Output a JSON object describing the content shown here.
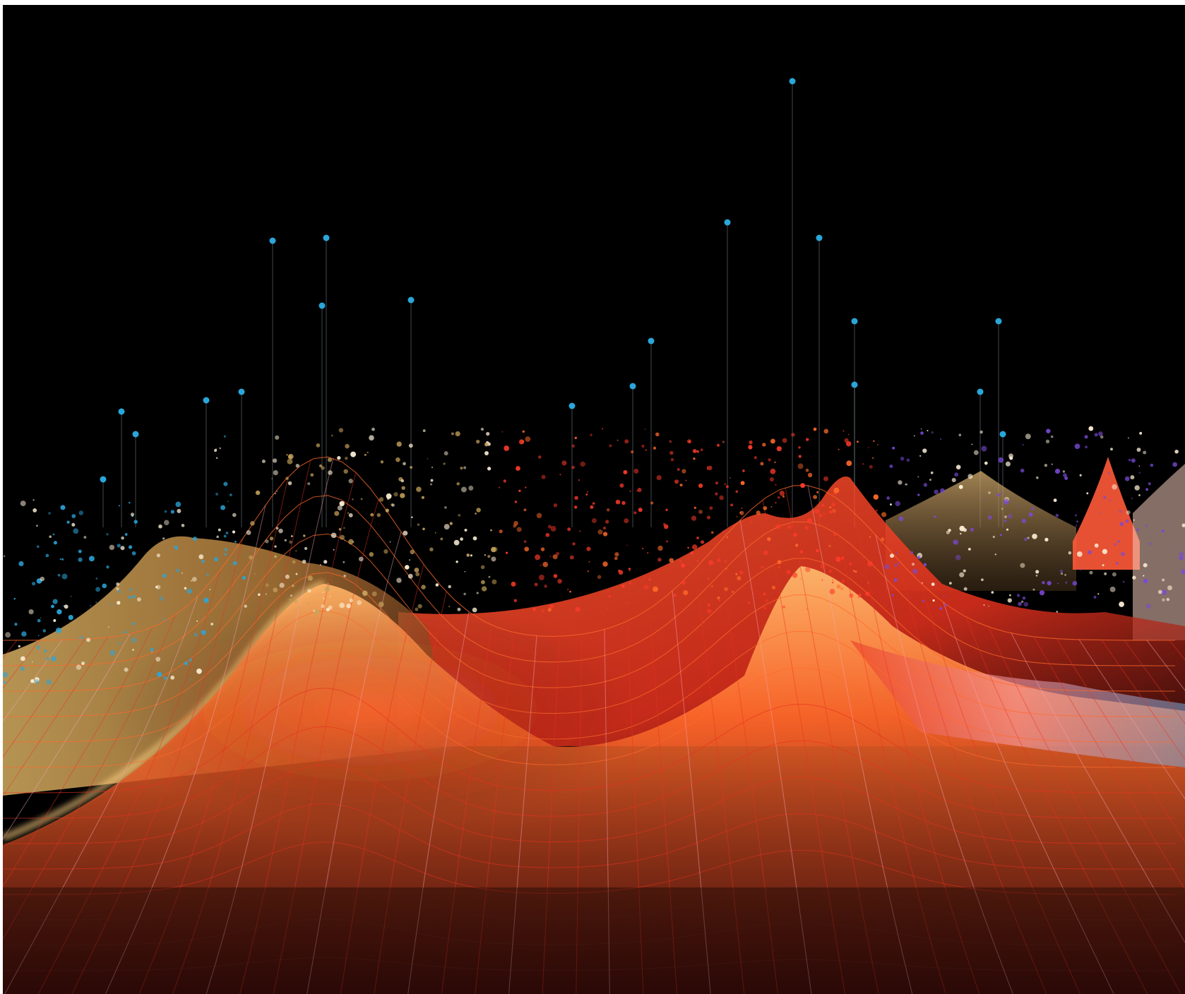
{
  "artwork": {
    "subject": "abstract-data-landscape",
    "background_color": "#000000",
    "palette": {
      "spike_tip": "#2aa6d9",
      "ridge_gold": "#c9a45c",
      "mesh_orange": "#ff6a2a",
      "mesh_red": "#e8321e",
      "mesh_pink": "#f2a4b4",
      "mesh_blue": "#7aa8d8",
      "grid_dark": "#6b2a24",
      "particle_red": "#ff3b2a",
      "particle_white": "#fff2d8",
      "particle_purple": "#7a4ad8"
    }
  }
}
